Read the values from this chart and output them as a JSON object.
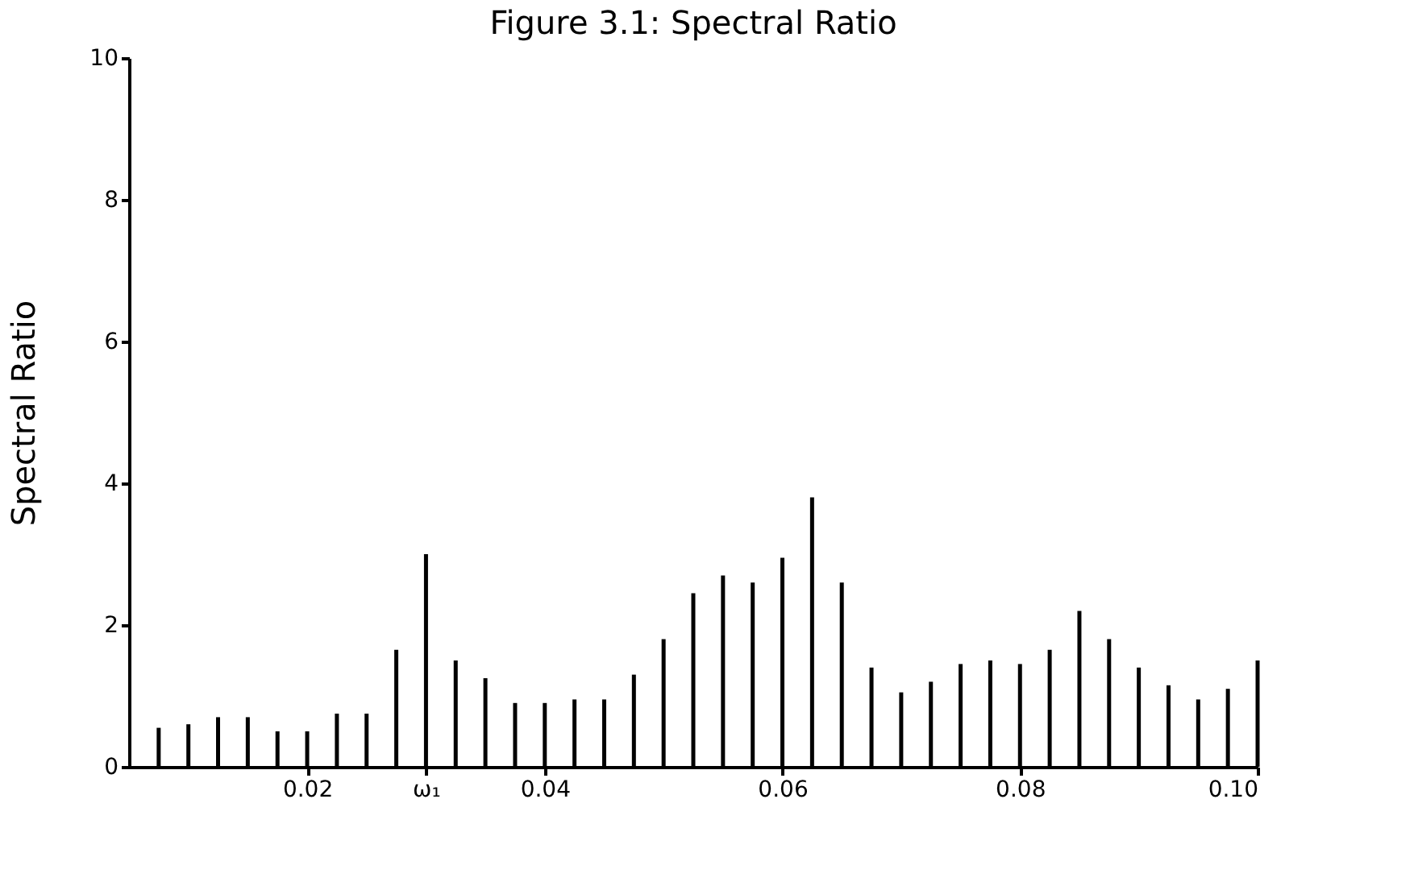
{
  "chart_data": {
    "type": "bar",
    "title": "Figure 3.1: Spectral Ratio",
    "ylabel": "Spectral Ratio",
    "x": [
      0.0075,
      0.01,
      0.0125,
      0.015,
      0.0175,
      0.02,
      0.0225,
      0.025,
      0.0275,
      0.03,
      0.0325,
      0.035,
      0.0375,
      0.04,
      0.0425,
      0.045,
      0.0475,
      0.05,
      0.0525,
      0.055,
      0.0575,
      0.06,
      0.0625,
      0.065,
      0.0675,
      0.07,
      0.0725,
      0.075,
      0.0775,
      0.08,
      0.0825,
      0.085,
      0.0875,
      0.09,
      0.0925,
      0.095,
      0.0975,
      0.1
    ],
    "values": [
      0.55,
      0.6,
      0.7,
      0.7,
      0.5,
      0.5,
      0.75,
      0.75,
      1.65,
      3.0,
      1.5,
      1.25,
      0.9,
      0.9,
      0.95,
      0.95,
      1.3,
      1.8,
      2.45,
      2.7,
      2.6,
      2.95,
      3.8,
      2.6,
      1.4,
      1.05,
      1.2,
      1.45,
      1.5,
      1.45,
      1.65,
      2.2,
      1.8,
      1.4,
      1.15,
      0.95,
      1.1,
      1.5
    ],
    "color": "#000000",
    "xlim": [
      0.005,
      0.1
    ],
    "xticks": [
      0.02,
      {
        "value": 0.03,
        "label": "ω₁"
      },
      0.04,
      0.06,
      0.08,
      {
        "value": 0.1,
        "label": "0.10"
      }
    ],
    "ylim": [
      0,
      10
    ],
    "yticks": [
      0,
      2,
      4,
      6,
      8,
      10
    ],
    "grid": false
  }
}
